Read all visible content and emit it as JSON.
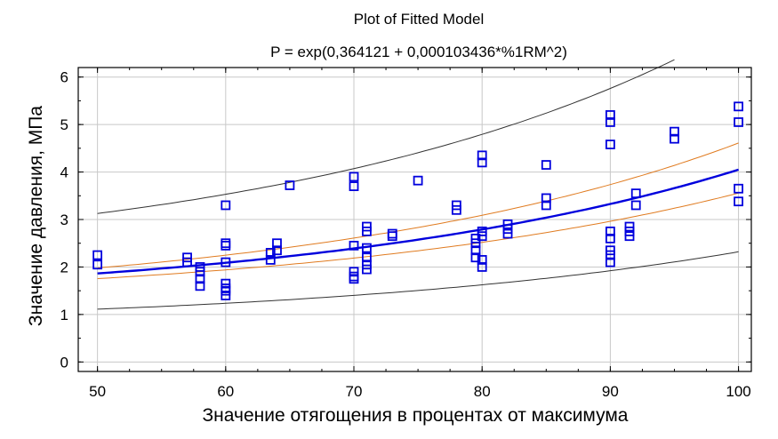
{
  "chart_data": {
    "type": "scatter",
    "title": "Plot of Fitted Model",
    "subtitle": "P = exp(0,364121 + 0,000103436*%1RM^2)",
    "xlabel": "Значение отягощения в процентах от максимума",
    "ylabel": "Значение давления, МПа",
    "xlim": [
      48.5,
      101
    ],
    "ylim": [
      -0.2,
      6.2
    ],
    "xticks": [
      50,
      60,
      70,
      80,
      90,
      100
    ],
    "yticks": [
      0,
      1,
      2,
      3,
      4,
      5,
      6
    ],
    "xtick_labels": [
      "50",
      "60",
      "70",
      "80",
      "90",
      "100"
    ],
    "ytick_labels": [
      "0",
      "1",
      "2",
      "3",
      "4",
      "5",
      "6"
    ],
    "grid": true,
    "model": {
      "a": 0.364121,
      "b": 0.000103436
    },
    "curves": [
      {
        "name": "fitted",
        "color": "#0000dd",
        "x_range": [
          50,
          100
        ]
      },
      {
        "name": "confidence-upper",
        "color": "#e07b20",
        "x_range": [
          50,
          100
        ],
        "log_offset": 0.06,
        "log_growth": 0.07
      },
      {
        "name": "confidence-lower",
        "color": "#e07b20",
        "x_range": [
          50,
          100
        ],
        "log_offset": -0.06,
        "log_growth": -0.07
      },
      {
        "name": "prediction-upper",
        "color": "#333333",
        "x_range": [
          50,
          95
        ],
        "log_offset": 0.517,
        "log_growth": 0.04
      },
      {
        "name": "prediction-lower",
        "color": "#333333",
        "x_range": [
          50,
          100
        ],
        "log_offset": -0.517,
        "log_growth": -0.04
      }
    ],
    "points": {
      "color": "#0000dd",
      "data": [
        [
          50,
          2.25
        ],
        [
          50,
          2.05
        ],
        [
          57,
          2.2
        ],
        [
          57,
          2.1
        ],
        [
          58,
          2.0
        ],
        [
          58,
          1.9
        ],
        [
          58,
          1.75
        ],
        [
          58,
          1.6
        ],
        [
          60,
          3.3
        ],
        [
          60,
          2.5
        ],
        [
          60,
          2.45
        ],
        [
          60,
          2.1
        ],
        [
          60,
          1.65
        ],
        [
          60,
          1.55
        ],
        [
          60,
          1.5
        ],
        [
          60,
          1.4
        ],
        [
          63.5,
          2.3
        ],
        [
          63.5,
          2.15
        ],
        [
          64,
          2.5
        ],
        [
          64,
          2.35
        ],
        [
          65,
          3.72
        ],
        [
          70,
          3.9
        ],
        [
          70,
          3.7
        ],
        [
          70,
          2.45
        ],
        [
          70,
          1.9
        ],
        [
          70,
          1.8
        ],
        [
          70,
          1.75
        ],
        [
          71,
          2.85
        ],
        [
          71,
          2.75
        ],
        [
          71,
          2.4
        ],
        [
          71,
          2.2
        ],
        [
          71,
          2.05
        ],
        [
          71,
          1.95
        ],
        [
          73,
          2.7
        ],
        [
          73,
          2.65
        ],
        [
          75,
          3.82
        ],
        [
          78,
          3.3
        ],
        [
          78,
          3.2
        ],
        [
          79.5,
          2.6
        ],
        [
          79.5,
          2.5
        ],
        [
          79.5,
          2.35
        ],
        [
          79.5,
          2.2
        ],
        [
          80,
          4.35
        ],
        [
          80,
          4.2
        ],
        [
          80,
          2.75
        ],
        [
          80,
          2.65
        ],
        [
          80,
          2.15
        ],
        [
          80,
          2.0
        ],
        [
          82,
          2.9
        ],
        [
          82,
          2.8
        ],
        [
          82,
          2.7
        ],
        [
          85,
          4.15
        ],
        [
          85,
          3.45
        ],
        [
          85,
          3.3
        ],
        [
          90,
          5.2
        ],
        [
          90,
          5.05
        ],
        [
          90,
          4.58
        ],
        [
          90,
          2.75
        ],
        [
          90,
          2.6
        ],
        [
          90,
          2.35
        ],
        [
          90,
          2.25
        ],
        [
          90,
          2.1
        ],
        [
          91.5,
          2.85
        ],
        [
          91.5,
          2.75
        ],
        [
          91.5,
          2.65
        ],
        [
          92,
          3.55
        ],
        [
          92,
          3.3
        ],
        [
          95,
          4.85
        ],
        [
          95,
          4.7
        ],
        [
          100,
          5.38
        ],
        [
          100,
          5.05
        ],
        [
          100,
          3.65
        ],
        [
          100,
          3.38
        ]
      ]
    }
  }
}
